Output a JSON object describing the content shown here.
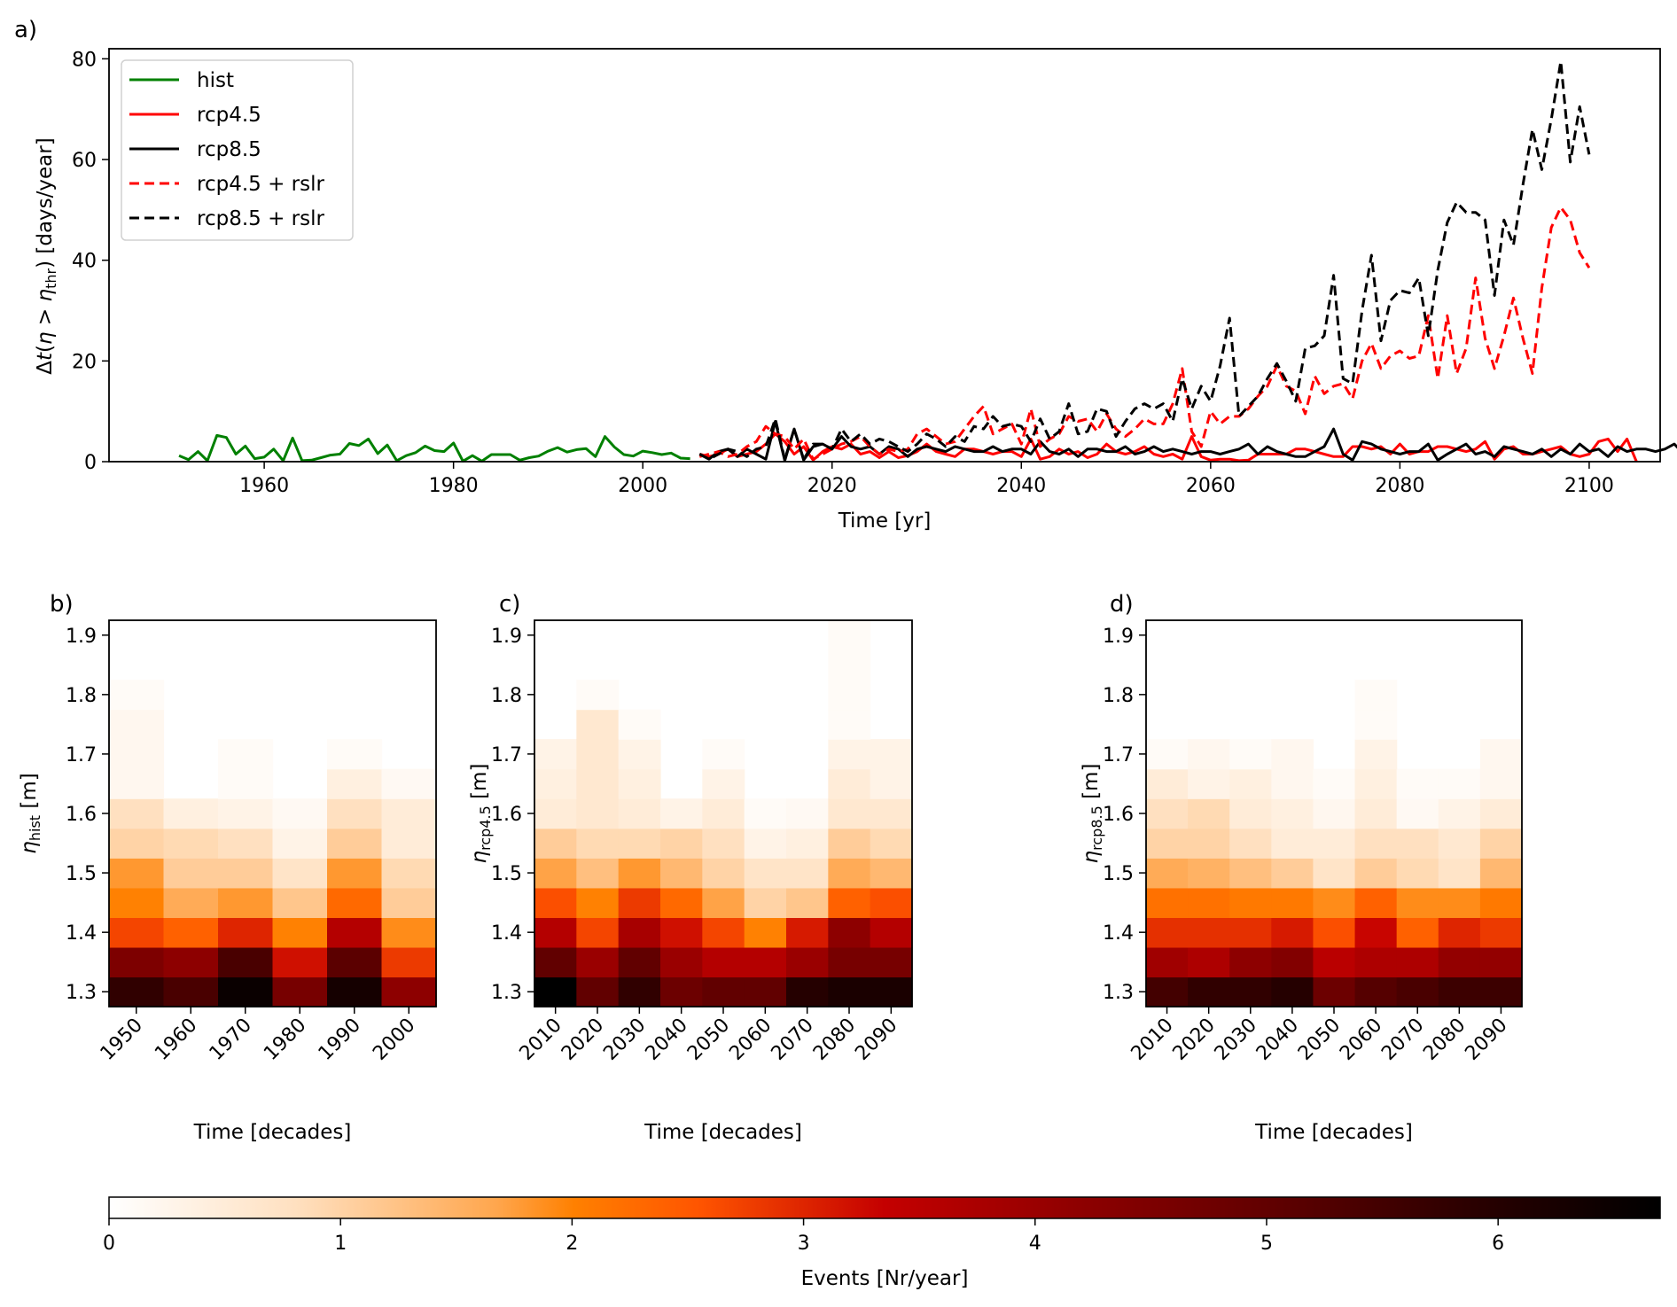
{
  "figure": {
    "panels": [
      "a)",
      "b)",
      "c)",
      "d)"
    ]
  },
  "chart_data": [
    {
      "panel": "a)",
      "type": "line",
      "title": "",
      "xlabel": "Time [yr]",
      "ylabel": "Δt(η > η_thr) [days/year]",
      "ylabel_parts": {
        "pre": "Δ",
        "t": "t",
        "open": "(",
        "eta": "η",
        "gt": " > ",
        "eta2": "η",
        "sub": "thr",
        "close": ") [days/year]"
      },
      "xlim": [
        1943.6,
        2107.5
      ],
      "ylim": [
        0,
        82
      ],
      "xticks": [
        1960,
        1980,
        2000,
        2020,
        2040,
        2060,
        2080,
        2100
      ],
      "yticks": [
        0,
        20,
        40,
        60,
        80
      ],
      "grid": false,
      "legend_position": "top-left",
      "series": [
        {
          "name": "hist",
          "color": "#008000",
          "style": "solid",
          "x_start": 1951,
          "values": [
            1.2,
            0.4,
            2.0,
            0.2,
            5.2,
            4.8,
            1.5,
            3.1,
            0.6,
            0.9,
            2.5,
            0.2,
            4.7,
            0.2,
            0.3,
            0.8,
            1.3,
            1.5,
            3.6,
            3.2,
            4.5,
            1.6,
            3.3,
            0.2,
            1.2,
            1.8,
            3.1,
            2.2,
            2.0,
            3.7,
            0.1,
            1.2,
            0.1,
            1.4,
            1.4,
            1.4,
            0.3,
            0.8,
            1.1,
            2.1,
            2.8,
            1.9,
            2.4,
            2.6,
            1.0,
            5.0,
            2.9,
            1.4,
            1.1,
            2.1,
            1.8,
            1.4,
            1.7,
            0.7,
            0.6
          ]
        },
        {
          "name": "rcp4.5",
          "color": "#ff0000",
          "style": "solid",
          "x_start": 2006,
          "values": [
            1.5,
            1.0,
            1.5,
            2.5,
            1.0,
            1.5,
            2.0,
            3.5,
            5.5,
            4.0,
            1.5,
            3.0,
            0.3,
            2.0,
            3.0,
            2.5,
            3.5,
            1.5,
            2.0,
            0.8,
            2.0,
            0.8,
            1.2,
            2.0,
            3.5,
            2.0,
            1.5,
            1.0,
            2.5,
            2.5,
            2.0,
            1.5,
            2.0,
            2.0,
            1.0,
            4.5,
            0.5,
            1.0,
            2.5,
            1.5,
            2.0,
            0.8,
            1.5,
            3.5,
            2.0,
            1.5,
            2.0,
            3.0,
            1.5,
            1.0,
            1.5,
            0.5,
            5.0,
            1.0,
            0.3,
            0.5,
            0.5,
            0.2,
            0.3,
            1.5,
            1.5,
            1.5,
            1.5,
            2.5,
            2.5,
            2.0,
            1.5,
            1.0,
            1.0,
            3.0,
            3.0,
            2.5,
            3.0,
            1.5,
            3.5,
            1.5,
            2.0,
            2.0,
            3.0,
            3.0,
            2.5,
            2.0,
            2.5,
            4.0,
            0.5,
            2.5,
            3.0,
            1.5,
            1.5,
            2.0,
            2.5,
            3.0,
            1.5,
            1.0,
            1.5,
            4.0,
            4.5,
            2.0,
            4.5,
            0.0
          ]
        },
        {
          "name": "rcp8.5",
          "color": "#000000",
          "style": "solid",
          "x_start": 2006,
          "values": [
            1.5,
            0.5,
            2.0,
            2.5,
            1.0,
            2.5,
            1.5,
            0.5,
            8.0,
            0.2,
            6.5,
            0.3,
            3.0,
            3.5,
            2.5,
            5.0,
            3.0,
            2.5,
            3.0,
            1.5,
            3.0,
            2.5,
            1.0,
            2.5,
            3.0,
            2.5,
            2.0,
            3.0,
            2.5,
            2.0,
            2.0,
            3.0,
            2.0,
            2.5,
            2.5,
            1.5,
            4.0,
            2.0,
            1.5,
            2.5,
            1.0,
            2.5,
            2.5,
            2.0,
            2.0,
            3.0,
            1.5,
            2.0,
            3.0,
            2.0,
            2.5,
            2.0,
            1.5,
            2.0,
            2.0,
            1.5,
            2.0,
            2.5,
            3.5,
            1.5,
            3.0,
            2.0,
            1.5,
            1.0,
            1.0,
            2.0,
            3.0,
            6.5,
            1.5,
            0.3,
            4.0,
            3.5,
            2.5,
            2.0,
            1.5,
            2.0,
            2.0,
            3.5,
            0.3,
            1.5,
            2.5,
            3.5,
            1.5,
            2.0,
            1.0,
            3.0,
            2.5,
            2.0,
            1.5,
            2.5,
            1.0,
            2.5,
            1.5,
            3.5,
            2.0,
            2.5,
            1.0,
            3.0,
            2.0,
            2.5,
            2.5,
            2.0,
            2.5,
            3.5,
            1.5,
            2.0,
            2.0,
            1.5,
            2.5,
            2.5,
            3.0,
            3.5,
            3.0,
            2.0,
            2.0
          ]
        },
        {
          "name": "rcp4.5 + rslr",
          "color": "#ff0000",
          "style": "dashed",
          "x_start": 2006,
          "values": [
            1.0,
            1.5,
            2.0,
            1.0,
            1.5,
            3.0,
            4.0,
            7.0,
            5.5,
            5.0,
            2.5,
            4.5,
            0.5,
            1.5,
            2.5,
            3.5,
            4.0,
            5.0,
            3.0,
            1.5,
            2.5,
            2.0,
            2.5,
            5.5,
            6.5,
            5.0,
            3.5,
            4.0,
            6.5,
            9.0,
            11.0,
            5.5,
            6.5,
            7.5,
            3.5,
            10.5,
            3.0,
            4.5,
            5.5,
            9.0,
            8.0,
            8.5,
            6.0,
            9.5,
            6.5,
            5.0,
            6.5,
            8.5,
            7.5,
            7.5,
            11.5,
            18.5,
            6.0,
            3.0,
            10.0,
            7.5,
            9.0,
            9.0,
            10.5,
            13.0,
            15.0,
            19.0,
            15.0,
            14.0,
            9.5,
            17.0,
            13.5,
            15.0,
            15.5,
            12.5,
            20.0,
            23.5,
            18.5,
            21.0,
            22.0,
            20.5,
            21.0,
            29.0,
            16.5,
            29.0,
            17.5,
            22.5,
            36.5,
            24.5,
            18.5,
            25.0,
            32.5,
            24.5,
            17.5,
            34.5,
            46.5,
            50.5,
            48.0,
            41.5,
            38.5
          ]
        },
        {
          "name": "rcp8.5 + rslr",
          "color": "#000000",
          "style": "dashed",
          "x_start": 2006,
          "values": [
            1.5,
            0.5,
            1.5,
            2.5,
            2.0,
            1.0,
            2.5,
            3.0,
            8.5,
            0.5,
            6.5,
            0.5,
            3.5,
            3.5,
            2.5,
            6.5,
            4.0,
            5.5,
            3.5,
            4.5,
            4.0,
            3.0,
            2.0,
            3.5,
            5.5,
            4.5,
            3.0,
            5.0,
            4.0,
            7.0,
            6.5,
            9.0,
            7.0,
            7.5,
            7.0,
            4.0,
            8.5,
            4.5,
            6.0,
            11.5,
            5.5,
            6.0,
            10.5,
            10.0,
            5.0,
            8.0,
            10.5,
            11.5,
            10.5,
            11.5,
            8.0,
            16.5,
            10.5,
            15.0,
            12.0,
            19.0,
            28.5,
            9.0,
            11.0,
            13.0,
            16.5,
            19.5,
            16.0,
            12.0,
            22.5,
            23.0,
            25.0,
            37.0,
            16.5,
            15.5,
            30.0,
            41.0,
            24.0,
            32.0,
            34.0,
            33.5,
            36.5,
            25.0,
            38.0,
            47.5,
            51.5,
            49.5,
            49.5,
            48.0,
            33.0,
            48.0,
            43.0,
            55.0,
            66.0,
            58.0,
            68.0,
            79.5,
            59.5,
            70.5,
            61.0
          ]
        }
      ]
    },
    {
      "panel": "b)",
      "type": "heatmap",
      "xlabel": "Time [decades]",
      "ylabel": "η_hist [m]",
      "ylabel_sub": "hist",
      "x": [
        "1950",
        "1960",
        "1970",
        "1980",
        "1990",
        "2000"
      ],
      "y": [
        1.3,
        1.35,
        1.4,
        1.45,
        1.5,
        1.55,
        1.6,
        1.65,
        1.7,
        1.75,
        1.8,
        1.85,
        1.9
      ],
      "yticks": [
        1.3,
        1.4,
        1.5,
        1.6,
        1.7,
        1.8,
        1.9
      ],
      "values": [
        [
          5.8,
          5.4,
          6.5,
          4.6,
          6.3,
          4.2
        ],
        [
          4.5,
          4.2,
          5.4,
          3.2,
          5.1,
          2.8
        ],
        [
          2.7,
          2.4,
          3.0,
          2.0,
          3.6,
          1.9
        ],
        [
          2.0,
          1.6,
          1.8,
          1.2,
          2.3,
          1.1
        ],
        [
          1.8,
          1.1,
          1.1,
          0.7,
          1.8,
          0.9
        ],
        [
          1.0,
          0.9,
          0.8,
          0.3,
          1.1,
          0.5
        ],
        [
          0.8,
          0.4,
          0.3,
          0.15,
          0.8,
          0.5
        ],
        [
          0.2,
          0,
          0.1,
          0,
          0.4,
          0.15
        ],
        [
          0.2,
          0,
          0.1,
          0,
          0.1,
          0
        ],
        [
          0.2,
          0,
          0,
          0,
          0,
          0
        ],
        [
          0.1,
          0,
          0,
          0,
          0,
          0
        ],
        [
          0,
          0,
          0,
          0,
          0,
          0
        ],
        [
          0,
          0,
          0,
          0,
          0,
          0
        ]
      ]
    },
    {
      "panel": "c)",
      "type": "heatmap",
      "xlabel": "Time [decades]",
      "ylabel": "η_rcp4.5 [m]",
      "ylabel_sub": "rcp4.5",
      "x": [
        "2010",
        "2020",
        "2030",
        "2040",
        "2050",
        "2060",
        "2070",
        "2080",
        "2090"
      ],
      "y": [
        1.3,
        1.35,
        1.4,
        1.45,
        1.5,
        1.55,
        1.6,
        1.65,
        1.7,
        1.75,
        1.8,
        1.85,
        1.9
      ],
      "yticks": [
        1.3,
        1.4,
        1.5,
        1.6,
        1.7,
        1.8,
        1.9
      ],
      "values": [
        [
          6.7,
          5.0,
          5.8,
          4.8,
          5.0,
          5.0,
          6.0,
          6.2,
          6.2
        ],
        [
          5.0,
          4.0,
          5.0,
          4.0,
          3.6,
          3.6,
          4.0,
          4.6,
          4.6
        ],
        [
          3.6,
          2.7,
          3.8,
          3.2,
          2.7,
          2.0,
          3.1,
          4.2,
          3.6
        ],
        [
          2.6,
          2.0,
          2.8,
          2.3,
          1.7,
          1.0,
          1.2,
          2.4,
          2.6
        ],
        [
          1.7,
          1.3,
          1.8,
          1.4,
          1.0,
          0.7,
          0.7,
          1.6,
          1.4
        ],
        [
          1.1,
          0.9,
          0.9,
          1.0,
          0.8,
          0.3,
          0.4,
          1.1,
          0.9
        ],
        [
          0.5,
          0.6,
          0.5,
          0.3,
          0.5,
          0.1,
          0.15,
          0.6,
          0.6
        ],
        [
          0.4,
          0.6,
          0.4,
          0,
          0.3,
          0,
          0,
          0.5,
          0.3
        ],
        [
          0.3,
          0.6,
          0.3,
          0,
          0.1,
          0,
          0,
          0.3,
          0.3
        ],
        [
          0,
          0.6,
          0.1,
          0,
          0,
          0,
          0,
          0.1,
          0
        ],
        [
          0,
          0.1,
          0,
          0,
          0,
          0,
          0,
          0.1,
          0
        ],
        [
          0,
          0,
          0,
          0,
          0,
          0,
          0,
          0.1,
          0
        ],
        [
          0,
          0,
          0,
          0,
          0,
          0,
          0,
          0.1,
          0
        ]
      ]
    },
    {
      "panel": "d)",
      "type": "heatmap",
      "xlabel": "Time [decades]",
      "ylabel": "η_rcp8.5 [m]",
      "ylabel_sub": "rcp8.5",
      "x": [
        "2010",
        "2020",
        "2030",
        "2040",
        "2050",
        "2060",
        "2070",
        "2080",
        "2090"
      ],
      "y": [
        1.3,
        1.35,
        1.4,
        1.45,
        1.5,
        1.55,
        1.6,
        1.65,
        1.7,
        1.75,
        1.8,
        1.85,
        1.9
      ],
      "yticks": [
        1.3,
        1.4,
        1.5,
        1.6,
        1.7,
        1.8,
        1.9
      ],
      "values": [
        [
          5.5,
          5.8,
          5.8,
          6.0,
          4.8,
          5.2,
          5.4,
          5.6,
          5.6
        ],
        [
          3.9,
          3.7,
          4.2,
          4.4,
          3.5,
          3.7,
          3.7,
          4.1,
          4.1
        ],
        [
          2.9,
          2.9,
          2.9,
          3.1,
          2.6,
          3.3,
          2.4,
          3.0,
          2.8
        ],
        [
          2.2,
          2.2,
          2.1,
          2.1,
          1.9,
          2.4,
          1.9,
          1.9,
          2.1
        ],
        [
          1.6,
          1.5,
          1.3,
          1.1,
          0.7,
          1.1,
          0.9,
          0.7,
          1.4
        ],
        [
          1.0,
          1.0,
          0.8,
          0.5,
          0.5,
          0.8,
          0.8,
          0.6,
          1.0
        ],
        [
          0.8,
          0.9,
          0.5,
          0.4,
          0.2,
          0.5,
          0.15,
          0.3,
          0.5
        ],
        [
          0.5,
          0.3,
          0.4,
          0.2,
          0.1,
          0.4,
          0.1,
          0.1,
          0.2
        ],
        [
          0.1,
          0.2,
          0.1,
          0.2,
          0,
          0.3,
          0,
          0,
          0.2
        ],
        [
          0,
          0,
          0,
          0,
          0,
          0.1,
          0,
          0,
          0
        ],
        [
          0,
          0,
          0,
          0,
          0,
          0.1,
          0,
          0,
          0
        ],
        [
          0,
          0,
          0,
          0,
          0,
          0,
          0,
          0,
          0
        ],
        [
          0,
          0,
          0,
          0,
          0,
          0,
          0,
          0,
          0
        ]
      ]
    },
    {
      "panel": "colorbar",
      "type": "colorbar",
      "label": "Events [Nr/year]",
      "colormap": "gist_heat_r",
      "range": [
        0,
        6.7
      ],
      "ticks": [
        0,
        1,
        2,
        3,
        4,
        5,
        6
      ]
    }
  ]
}
